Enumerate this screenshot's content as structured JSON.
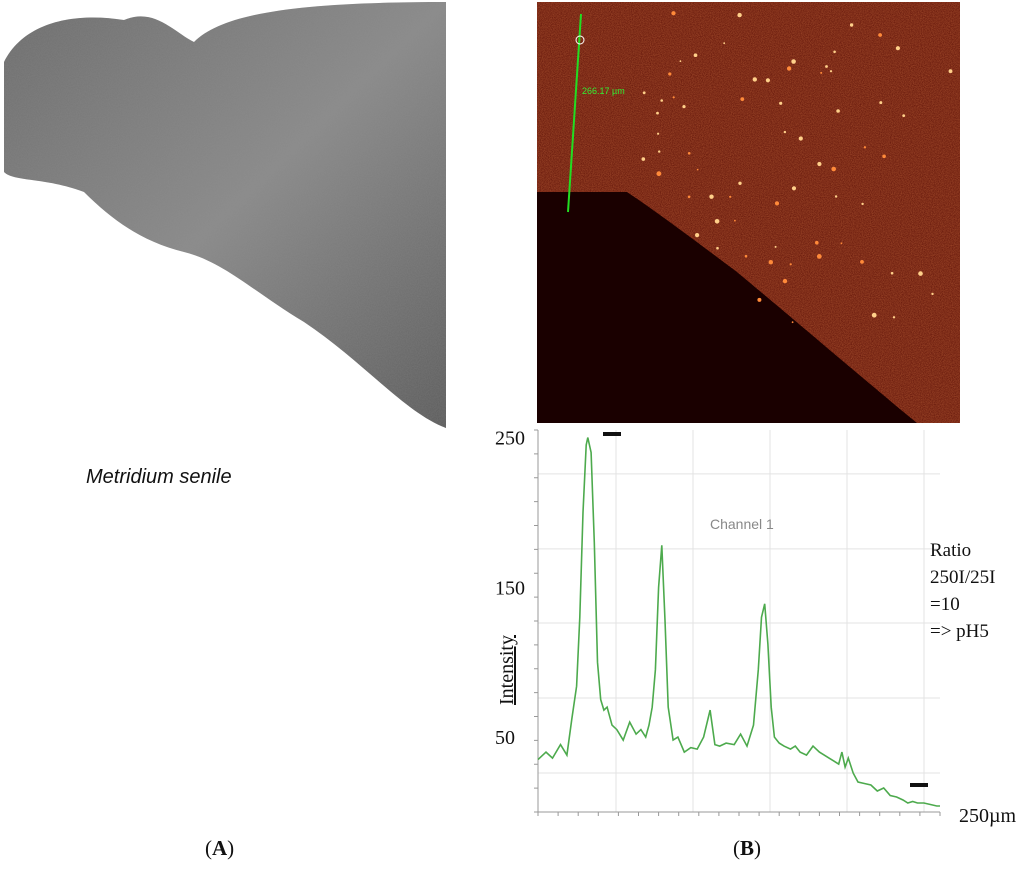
{
  "colors": {
    "trace": "#4daa4d",
    "grid": "#e3e3e3",
    "fluor_bg": "#5a0c04",
    "fluor_dark": "#1a0000",
    "measure_line": "#22dd22"
  },
  "panel_a": {
    "species": "Metridium senile",
    "caption_letter": "A"
  },
  "panel_b": {
    "caption_letter": "B",
    "measure_label": "266.17 µm"
  },
  "ratio": {
    "lines": [
      "Ratio",
      "250I/25I",
      "=10",
      "=> pH5"
    ]
  },
  "chart_data": {
    "type": "line",
    "series_label": "Channel 1",
    "ylabel": "Intensity",
    "x_end_label": "250µm",
    "y_tick_labels": [
      "250",
      "150",
      "50"
    ],
    "y_ticks": [
      250,
      150,
      50
    ],
    "ylim": [
      0,
      255
    ],
    "xlim": [
      0,
      250
    ],
    "grid": true,
    "x": [
      0,
      5,
      9,
      14,
      18,
      21,
      24,
      26,
      28,
      30,
      31,
      33,
      35,
      37,
      39,
      41,
      43,
      46,
      49,
      53,
      57,
      61,
      64,
      67,
      69,
      71,
      73,
      75,
      77,
      79,
      81,
      84,
      87,
      91,
      95,
      99,
      103,
      107,
      110,
      113,
      117,
      122,
      126,
      130,
      134,
      137,
      139,
      141,
      143,
      145,
      147,
      150,
      153,
      157,
      160,
      163,
      167,
      171,
      175,
      178,
      181,
      184,
      187,
      189,
      191,
      193,
      196,
      199,
      203,
      207,
      211,
      215,
      219,
      223,
      227,
      230,
      233,
      236,
      240,
      244,
      248,
      250
    ],
    "y": [
      35,
      40,
      36,
      45,
      38,
      62,
      84,
      130,
      200,
      245,
      250,
      240,
      180,
      100,
      75,
      68,
      70,
      58,
      55,
      48,
      60,
      52,
      55,
      50,
      58,
      70,
      95,
      150,
      178,
      128,
      70,
      48,
      50,
      40,
      43,
      42,
      50,
      68,
      45,
      44,
      46,
      45,
      52,
      44,
      58,
      95,
      130,
      139,
      112,
      70,
      50,
      46,
      44,
      42,
      44,
      40,
      38,
      44,
      40,
      38,
      36,
      34,
      32,
      40,
      30,
      36,
      26,
      20,
      19,
      18,
      14,
      16,
      11,
      10,
      8,
      6,
      7,
      6,
      6,
      5,
      4,
      4
    ]
  }
}
